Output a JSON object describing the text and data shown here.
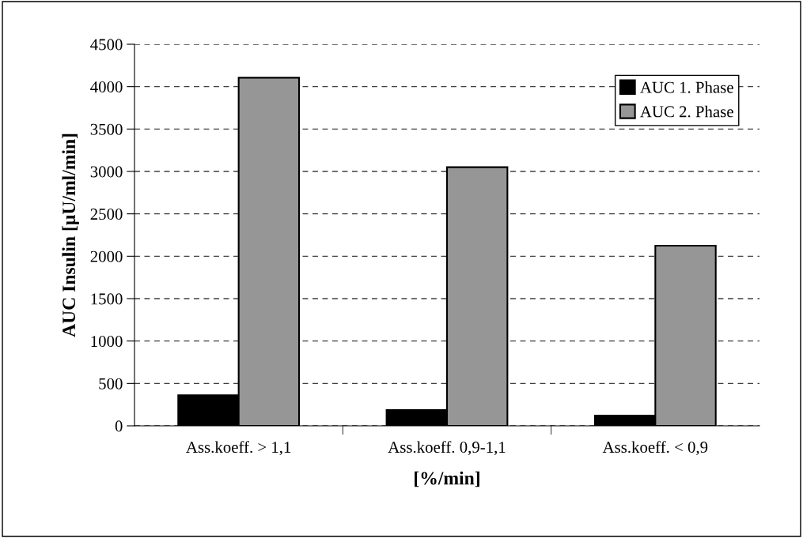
{
  "chart_data": {
    "type": "bar",
    "xlabel": "[%/min]",
    "ylabel": "AUC Insulin [µU/ml/min]",
    "categories": [
      "Ass.koeff. > 1,1",
      "Ass.koeff. 0,9-1,1",
      "Ass.koeff. < 0,9"
    ],
    "series": [
      {
        "name": "AUC 1. Phase",
        "color": "#000000",
        "values": [
          360,
          185,
          120
        ]
      },
      {
        "name": "AUC 2. Phase",
        "color": "#969696",
        "values": [
          4105,
          3050,
          2125
        ]
      }
    ],
    "ylim": [
      0,
      4500
    ],
    "yticks": [
      0,
      500,
      1000,
      1500,
      2000,
      2500,
      3000,
      3500,
      4000,
      4500
    ],
    "grid": "y",
    "legend": "top right"
  }
}
